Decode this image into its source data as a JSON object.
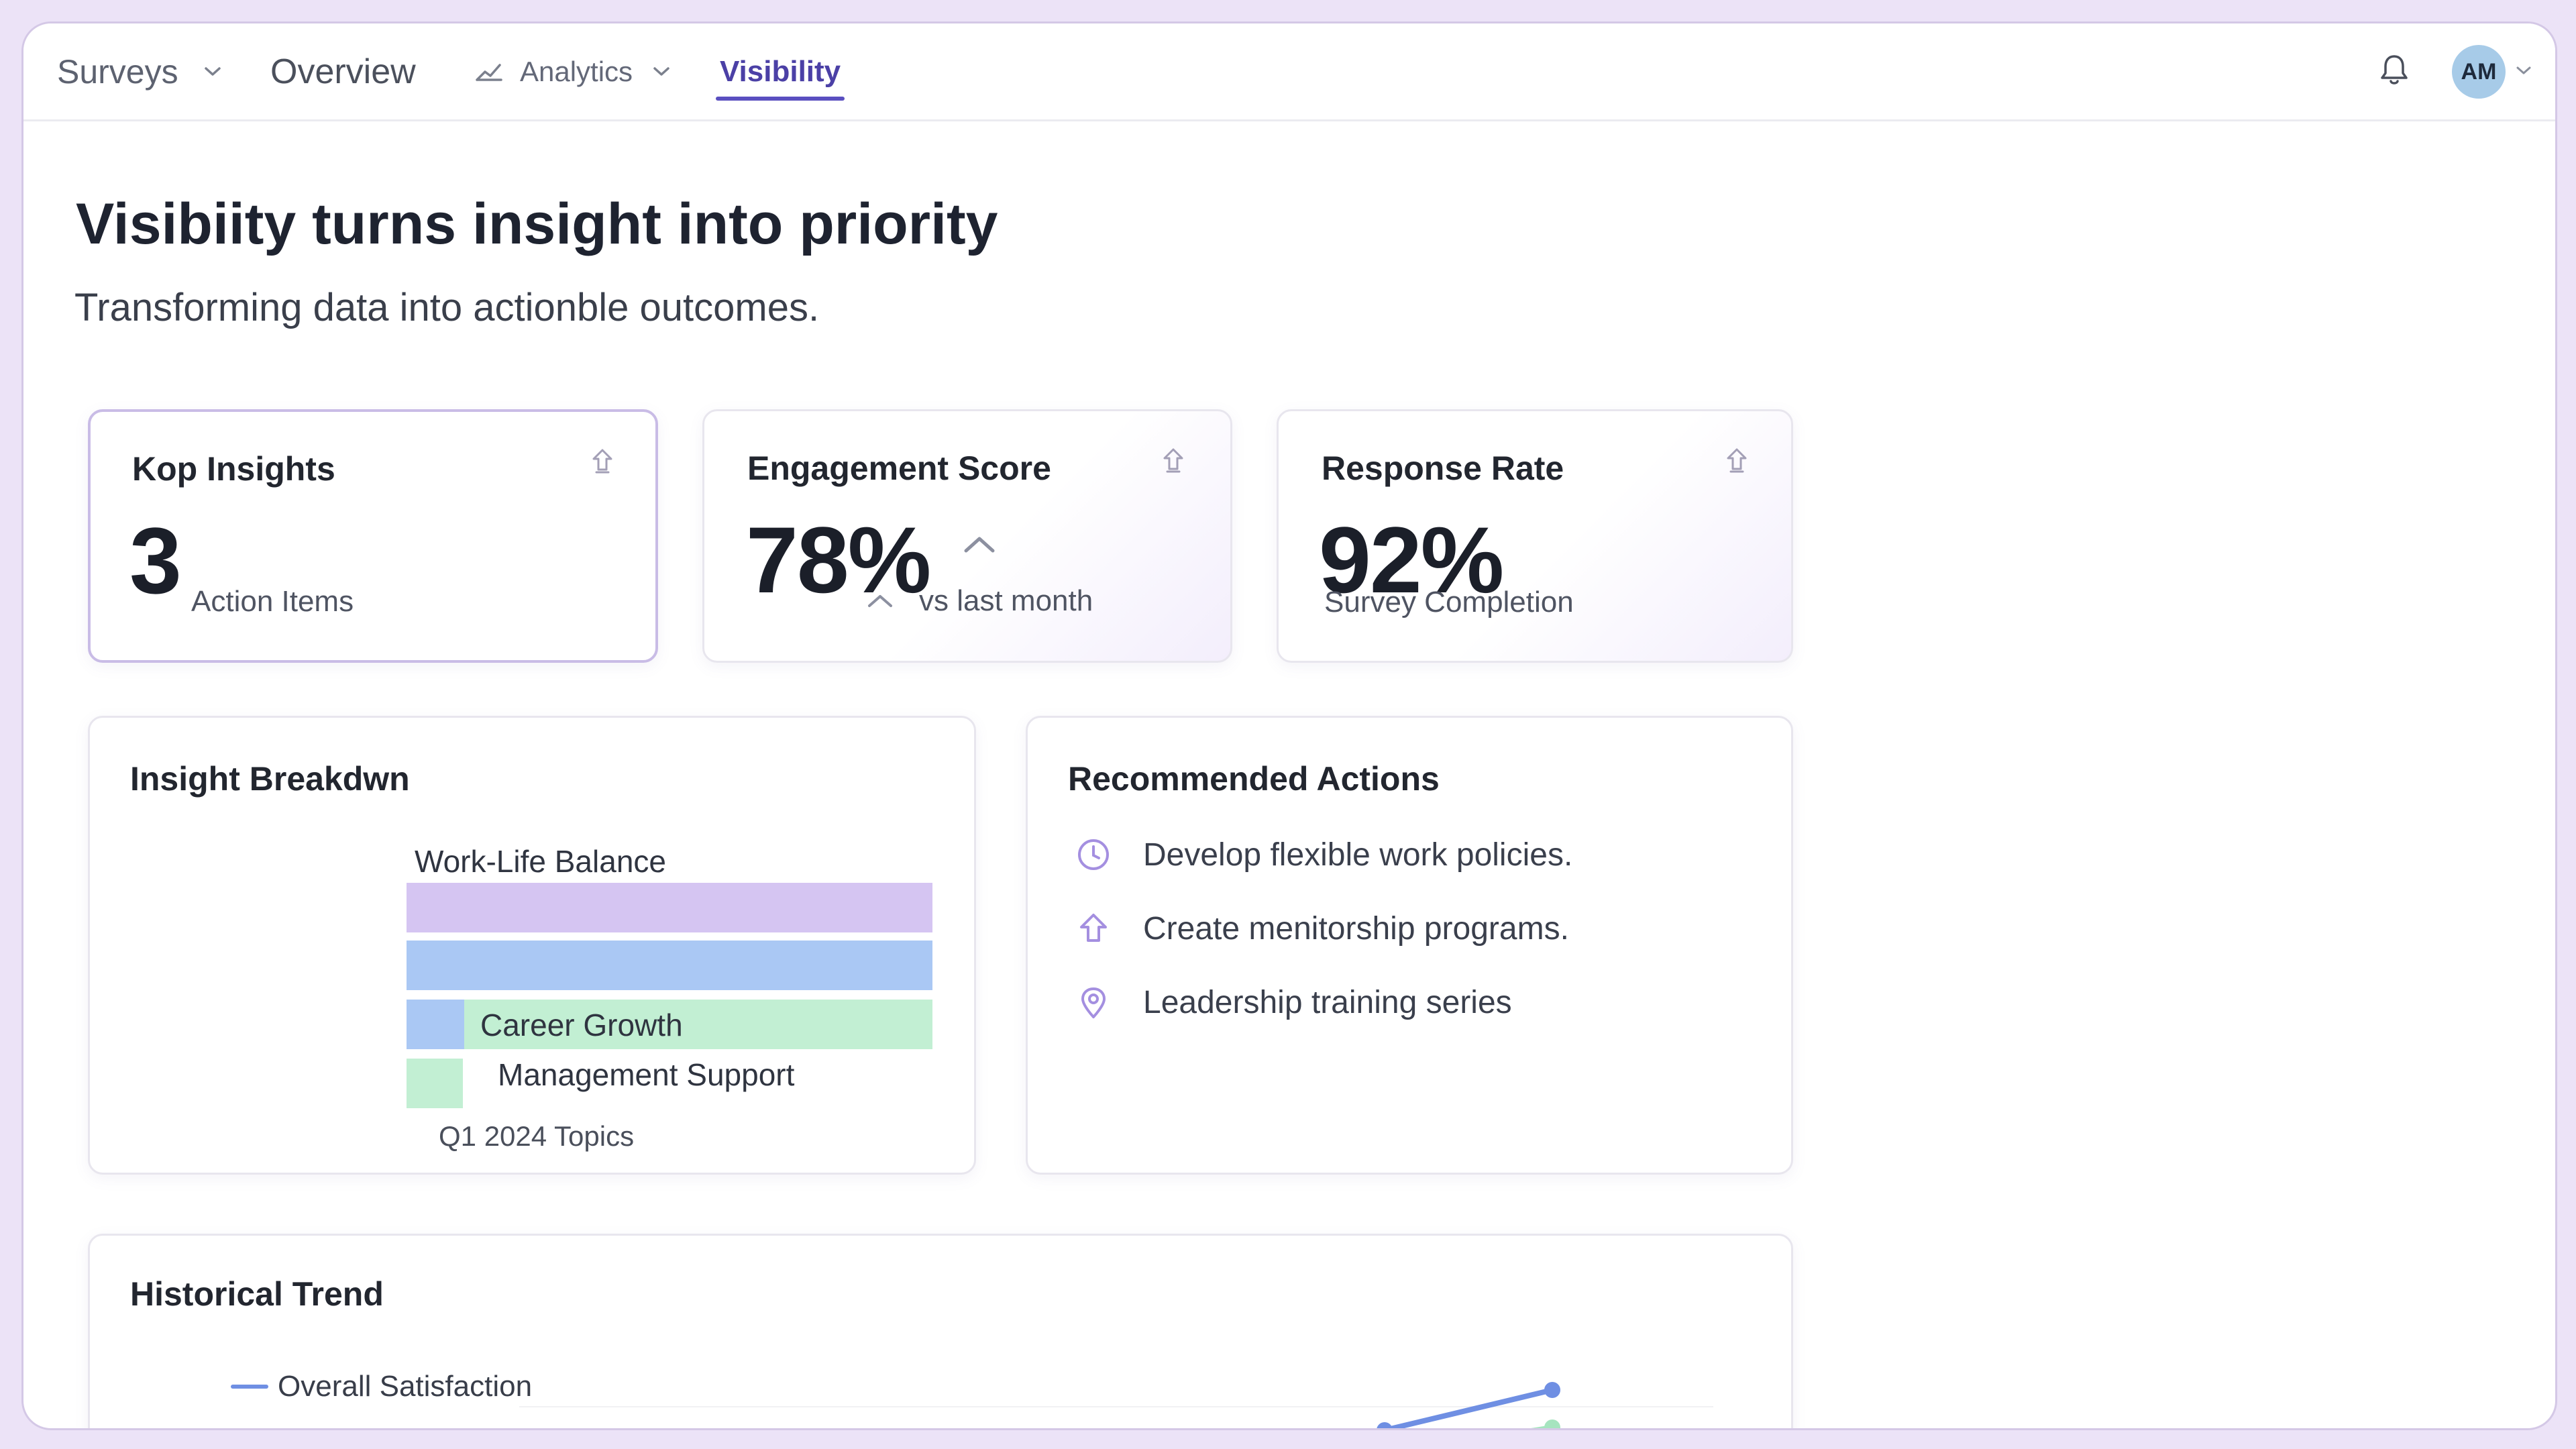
{
  "nav": {
    "surveys": "Surveys",
    "overview": "Overview",
    "analytics": "Analytics",
    "visibility": "Visibility",
    "active_tab": "Visibility",
    "icons": {
      "analytics_lead": "chart-line-icon",
      "chevron": "chevron-down-icon"
    }
  },
  "header": {
    "notifications_icon": "bell-icon",
    "avatar_initials": "AM"
  },
  "page": {
    "title": "Visibiity turns insight into priority",
    "subtitle": "Transforming data into actionble outcomes."
  },
  "metrics": {
    "insights": {
      "title": "Kop Insights",
      "value": "3",
      "label": "Action Items",
      "icon": "refresh-icon"
    },
    "engagement": {
      "title": "Engagement Score",
      "value": "78%",
      "label": "vs last month",
      "trend": "up",
      "icon": "refresh-icon"
    },
    "response": {
      "title": "Response Rate",
      "value": "92%",
      "label": "Survey Completion",
      "icon": "refresh-icon"
    }
  },
  "breakdown": {
    "title": "Insight Breakdwn",
    "chart_data": {
      "type": "bar",
      "categories": [
        "Work-Life Balance",
        "",
        "Career Growth",
        "Management Support"
      ],
      "xlabel": "Q1 2024 Topics",
      "colors": [
        "#d5c5f2",
        "#aac8f4",
        "#c2efd3",
        "#c2efd3"
      ]
    }
  },
  "actions": {
    "title": "Recommended Actions",
    "items": [
      {
        "label": "Develop flexible work policies.",
        "icon": "clock-icon"
      },
      {
        "label": "Create menitorship programs.",
        "icon": "arrow-up-icon"
      },
      {
        "label": "Leadership training series",
        "icon": "location-pin-icon"
      }
    ]
  },
  "trend": {
    "title": "Historical Trend",
    "chart_data": {
      "type": "line",
      "series": [
        {
          "name": "Overall Satisfaction",
          "color": "#6f8fe3"
        },
        {
          "color": "#a6e4bf"
        }
      ]
    }
  },
  "colors": {
    "accent": "#5a4fc0",
    "frame": "#ece3f7"
  }
}
